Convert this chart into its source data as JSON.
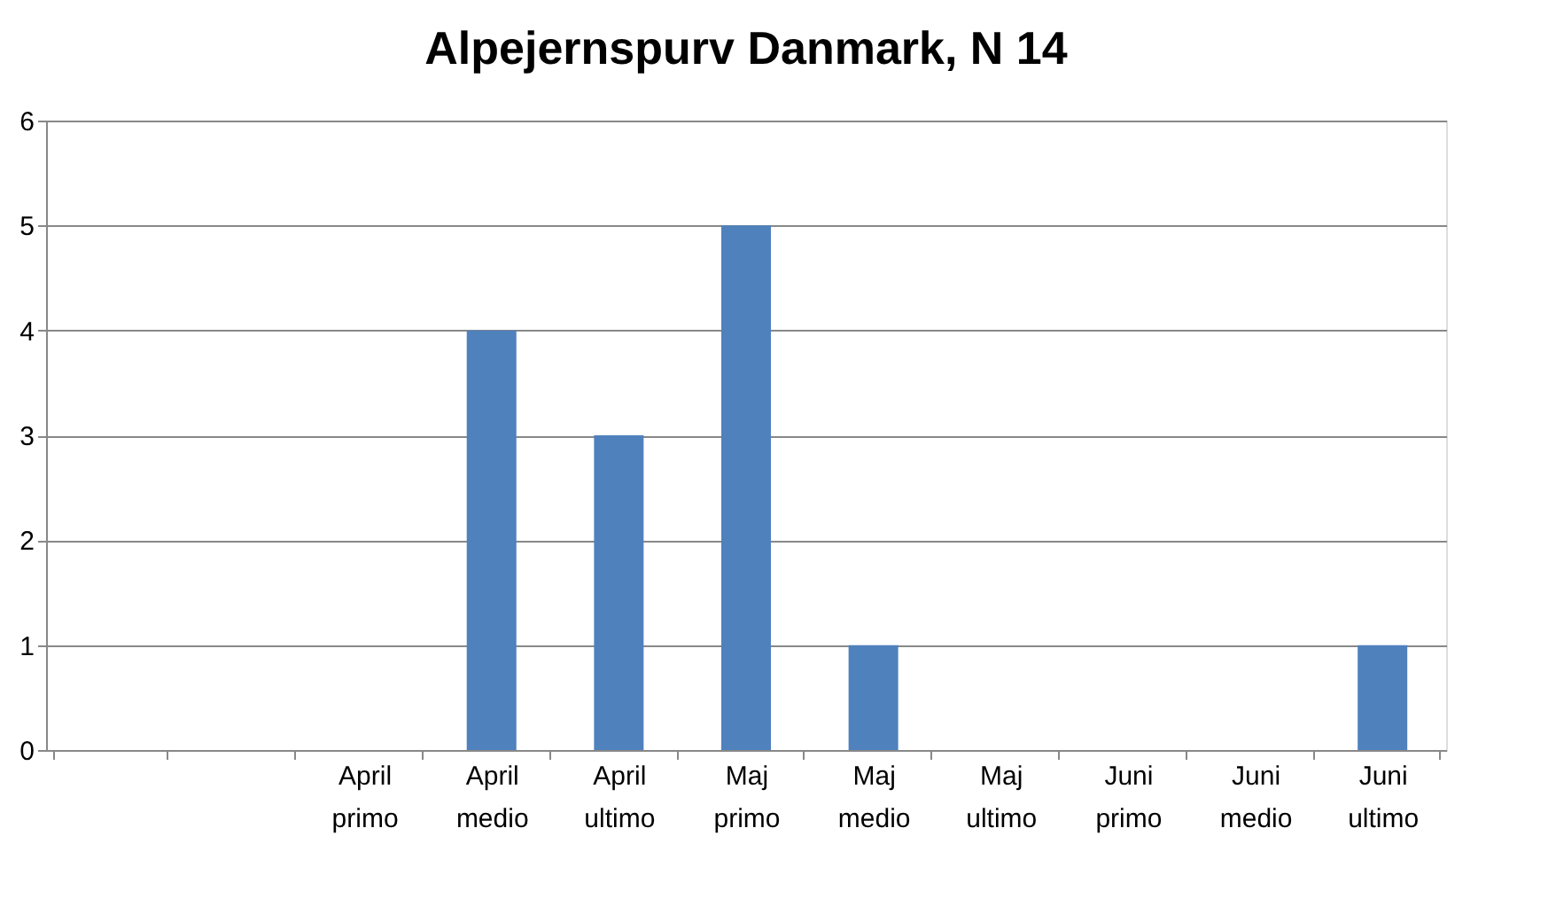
{
  "chart_data": {
    "type": "bar",
    "title": "Alpejernspurv Danmark, N 14",
    "categories": [
      null,
      null,
      "April primo",
      "April medio",
      "April ultimo",
      "Maj primo",
      "Maj medio",
      "Maj ultimo",
      "Juni primo",
      "Juni medio",
      "Juni ultimo"
    ],
    "values": [
      0,
      0,
      0,
      4,
      3,
      5,
      1,
      0,
      0,
      0,
      1
    ],
    "color": "#4f81bd",
    "ylim": [
      0,
      6
    ],
    "yticks": [
      0,
      1,
      2,
      3,
      4,
      5,
      6
    ],
    "grid": "y"
  }
}
